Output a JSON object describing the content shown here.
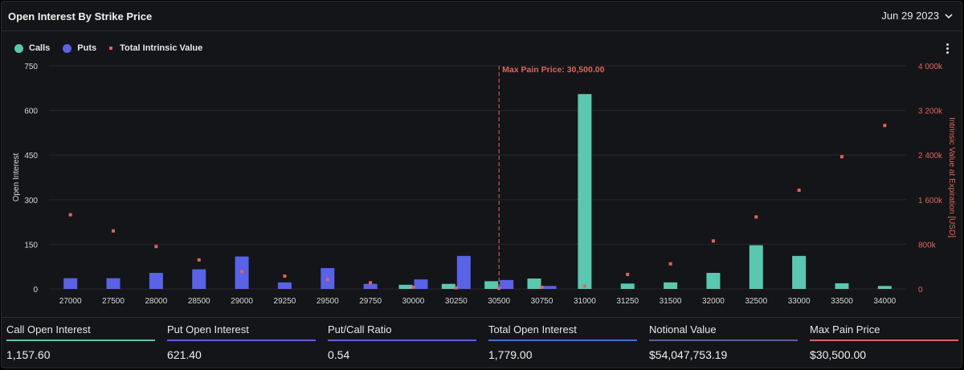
{
  "header": {
    "title": "Open Interest By Strike Price",
    "date": "Jun 29 2023"
  },
  "legend": [
    {
      "label": "Calls",
      "color": "#5ac8b0",
      "shape": "circle"
    },
    {
      "label": "Puts",
      "color": "#5a62e8",
      "shape": "circle"
    },
    {
      "label": "Total Intrinsic Value",
      "color": "#e0655a",
      "shape": "square"
    }
  ],
  "chart_data": {
    "type": "bar",
    "categories": [
      "27000",
      "27500",
      "28000",
      "28500",
      "29000",
      "29250",
      "29500",
      "29750",
      "30000",
      "30250",
      "30500",
      "30750",
      "31000",
      "31250",
      "31500",
      "32000",
      "32500",
      "33000",
      "33500",
      "34000"
    ],
    "series": [
      {
        "name": "Calls",
        "color": "#5ac8b0",
        "values": [
          0,
          0,
          0,
          0,
          0,
          0,
          0,
          0,
          14,
          17,
          26,
          35,
          655,
          18,
          22,
          54,
          147,
          111,
          19,
          10
        ]
      },
      {
        "name": "Puts",
        "color": "#5a62e8",
        "values": [
          36,
          36,
          54,
          66,
          109,
          22,
          70,
          17,
          32,
          111,
          30,
          10,
          0,
          0,
          0,
          0,
          0,
          0,
          0,
          0
        ]
      },
      {
        "name": "Total Intrinsic Value",
        "color": "#e0655a",
        "type": "scatter",
        "axis": "right",
        "values": [
          1330000,
          1040000,
          760000,
          520000,
          310000,
          230000,
          170000,
          110000,
          30000,
          20000,
          10000,
          30000,
          50000,
          260000,
          450000,
          860000,
          1290000,
          1770000,
          2370000,
          2930000
        ]
      }
    ],
    "ylabel": "Open Interest",
    "ylim": [
      0,
      750
    ],
    "yticks": [
      0,
      150,
      300,
      450,
      600,
      750
    ],
    "y2label": "Intrinsic Value at Expiration [USD]",
    "y2lim": [
      0,
      4000000
    ],
    "y2ticks": [
      0,
      800000,
      1600000,
      2400000,
      3200000,
      4000000
    ],
    "y2ticklabels": [
      "0",
      "800k",
      "1 600k",
      "2 400k",
      "3 200k",
      "4 000k"
    ],
    "marker": {
      "category": "30500",
      "label": "Max Pain Price: 30,500.00"
    },
    "grid": true,
    "legend": "top-left"
  },
  "stats": [
    {
      "label": "Call Open Interest",
      "value": "1,157.60",
      "color": "#5ac8b0"
    },
    {
      "label": "Put Open Interest",
      "value": "621.40",
      "color": "#5a62e8"
    },
    {
      "label": "Put/Call Ratio",
      "value": "0.54",
      "color": "#5a62e8"
    },
    {
      "label": "Total Open Interest",
      "value": "1,779.00",
      "color": "#3d6fd8"
    },
    {
      "label": "Notional Value",
      "value": "$54,047,753.19",
      "color": "#5561a8"
    },
    {
      "label": "Max Pain Price",
      "value": "$30,500.00",
      "color": "#e0655a"
    }
  ]
}
